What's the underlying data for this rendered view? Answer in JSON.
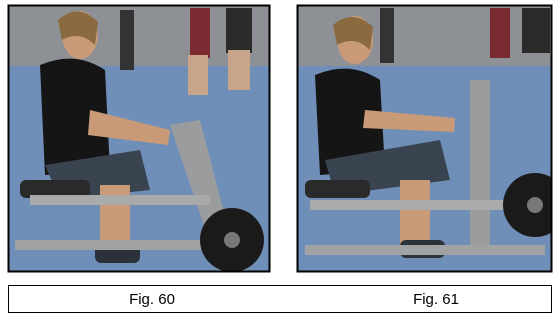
{
  "figures": [
    {
      "caption": "Fig. 60"
    },
    {
      "caption": "Fig. 61"
    }
  ]
}
